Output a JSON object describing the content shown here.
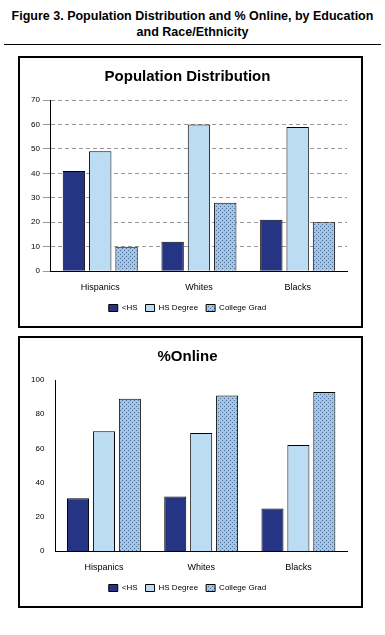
{
  "title": "Figure 3. Population Distribution and % Online, by Education and Race/Ethnicity",
  "chart_data": [
    {
      "type": "bar",
      "title": "Population Distribution",
      "categories": [
        "Hispanics",
        "Whites",
        "Blacks"
      ],
      "series": [
        {
          "name": "<HS",
          "color": "#26338f",
          "values": [
            41,
            12,
            21
          ]
        },
        {
          "name": "HS Degree",
          "color": "#bcdcf4",
          "values": [
            49,
            60,
            59
          ]
        },
        {
          "name": "College Grad",
          "color": "#9fc6e4",
          "values": [
            10,
            28,
            20
          ]
        }
      ],
      "ylim": [
        0,
        70
      ],
      "yticks": [
        0,
        10,
        20,
        30,
        40,
        50,
        60,
        70
      ],
      "grid": true,
      "legend": "bottom"
    },
    {
      "type": "bar",
      "title": "%Online",
      "categories": [
        "Hispanics",
        "Whites",
        "Blacks"
      ],
      "series": [
        {
          "name": "<HS",
          "color": "#26338f",
          "values": [
            31,
            32,
            25
          ]
        },
        {
          "name": "HS Degree",
          "color": "#bcdcf4",
          "values": [
            70,
            69,
            62
          ]
        },
        {
          "name": "College Grad",
          "color": "#9fc6e4",
          "values": [
            89,
            91,
            93
          ]
        }
      ],
      "ylim": [
        0,
        100
      ],
      "yticks": [
        0,
        20,
        40,
        60,
        80,
        100
      ],
      "grid": false,
      "legend": "bottom"
    }
  ]
}
